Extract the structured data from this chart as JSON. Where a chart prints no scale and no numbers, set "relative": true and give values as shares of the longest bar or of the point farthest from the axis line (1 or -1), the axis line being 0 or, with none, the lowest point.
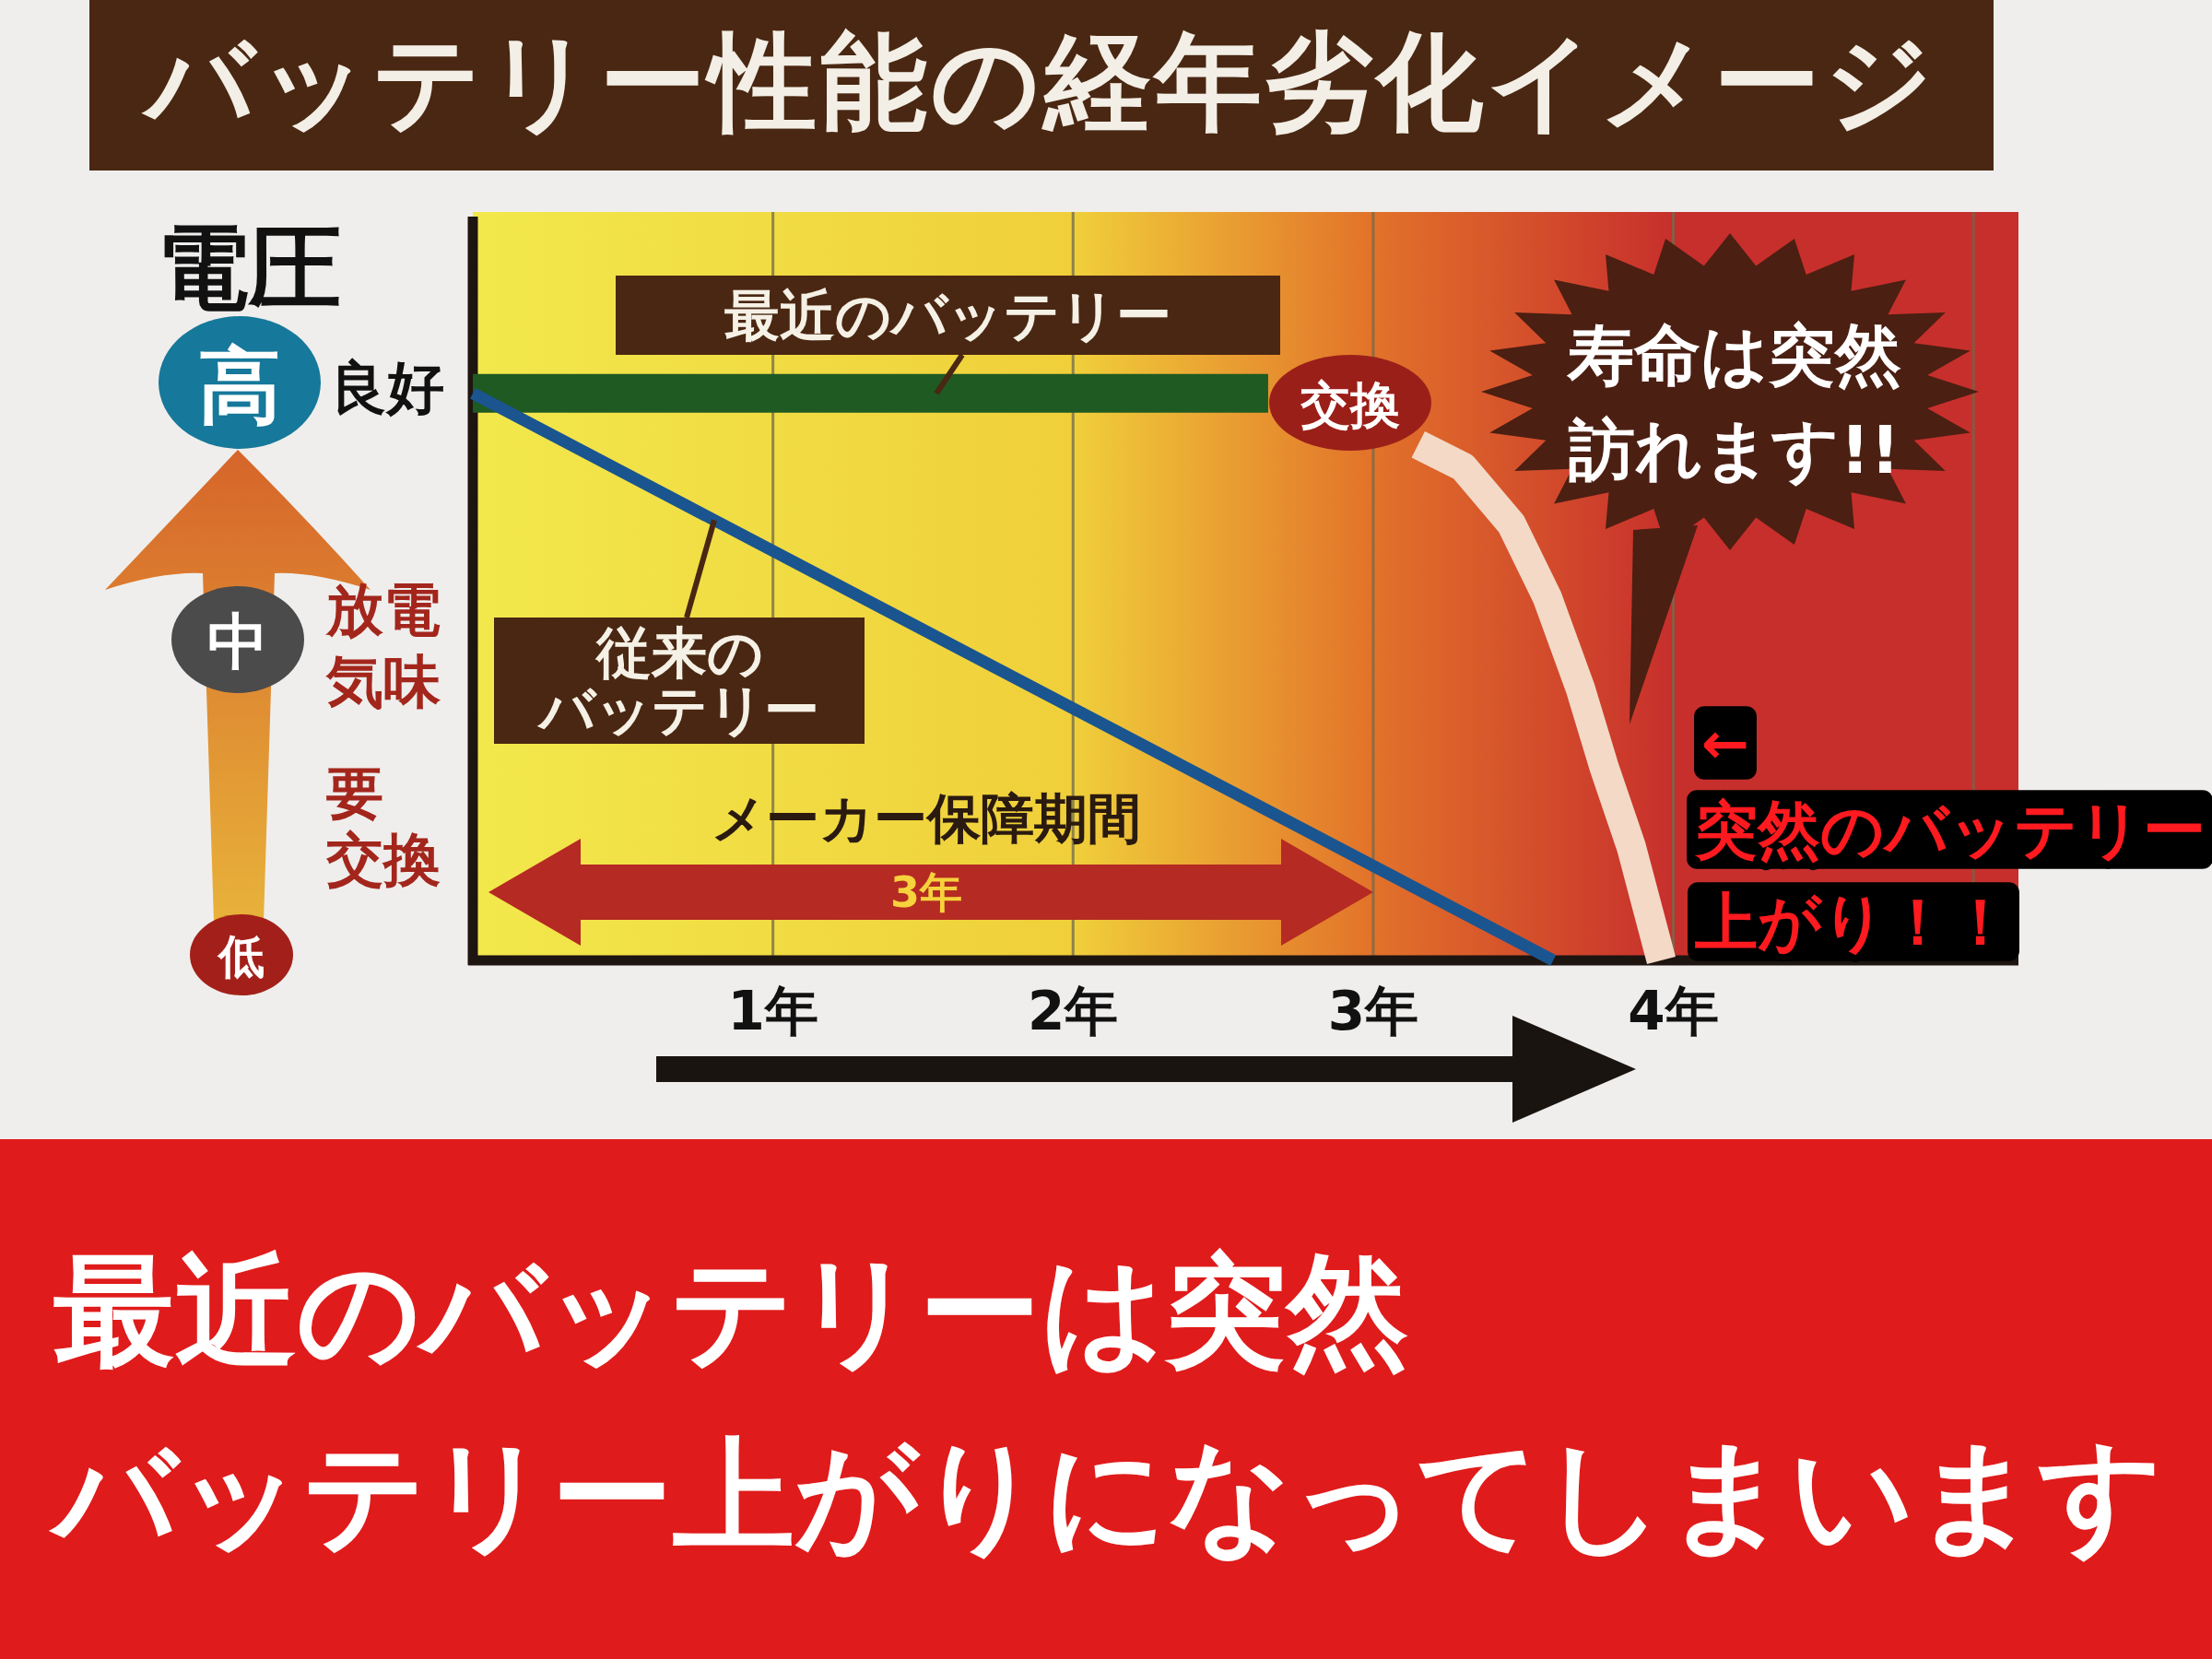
{
  "chart_data": {
    "type": "line",
    "title": "バッテリー性能の経年劣化イメージ",
    "ylabel": "電圧",
    "relative": true,
    "xlim": [
      0,
      5.15
    ],
    "xticks": [
      {
        "value": 1,
        "label": "1年"
      },
      {
        "value": 2,
        "label": "2年"
      },
      {
        "value": 3,
        "label": "3年"
      },
      {
        "value": 4,
        "label": "4年"
      },
      {
        "value": 5,
        "label": null
      }
    ],
    "grid": "x",
    "line_style": "solid",
    "series": [
      {
        "name": "最近のバッテリー",
        "color": "#1e5a22",
        "x": [
          0,
          2.65
        ],
        "values": [
          1,
          1
        ]
      },
      {
        "color": "#f3d9c6",
        "x": [
          3.15,
          3.3,
          3.46,
          3.58,
          3.69,
          3.77,
          3.86,
          3.93,
          3.96
        ],
        "values": [
          0.91,
          0.87,
          0.77,
          0.64,
          0.48,
          0.34,
          0.2,
          0.06,
          0
        ]
      },
      {
        "name": "従来のバッテリー",
        "color": "#1a5590",
        "x": [
          0,
          3.6
        ],
        "values": [
          1,
          0
        ]
      }
    ],
    "bands": [
      {
        "axis": "x",
        "from": 0,
        "to": 2,
        "color": "#f2e84c"
      },
      {
        "axis": "x",
        "from": 2,
        "to": 3,
        "color": "#f0cf3a"
      },
      {
        "axis": "x",
        "from": 3,
        "to": 4,
        "color": "#e2722a"
      },
      {
        "axis": "x",
        "from": 4,
        "to": 5.15,
        "color": "#c72f2c"
      }
    ],
    "annotations": [
      "高",
      "良好",
      "中",
      "放電気味",
      "低",
      "要交換",
      "交換",
      "寿命は突然訪れます!!",
      "メーカー保障期間",
      "3年",
      "←",
      "突然のバッテリー上がり！！",
      "最近のバッテリーは突然バッテリー上がりになってしまいます"
    ]
  }
}
